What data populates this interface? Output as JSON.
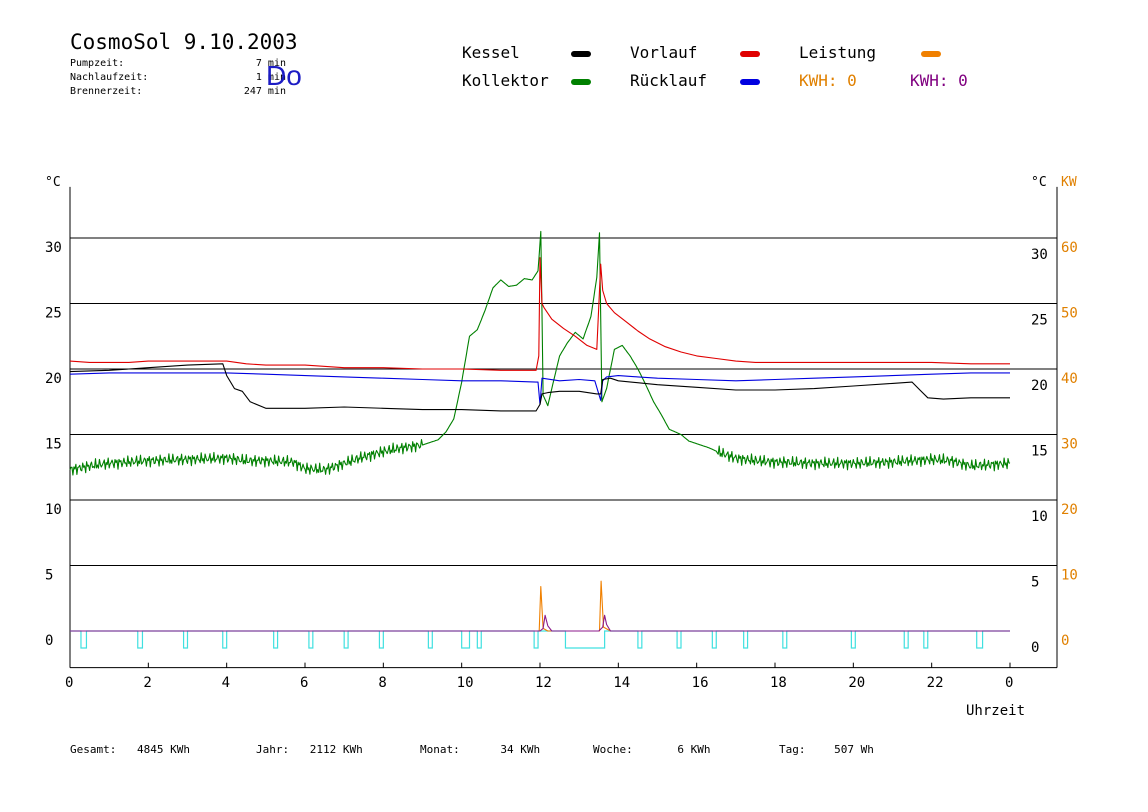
{
  "header": {
    "title": "CosmoSol 9.10.2003",
    "day": "Do",
    "info": [
      {
        "label": "Pumpzeit:",
        "value": "7 min"
      },
      {
        "label": "Nachlaufzeit:",
        "value": "1 min"
      },
      {
        "label": "Brennerzeit:",
        "value": "247 min"
      }
    ]
  },
  "legend": {
    "items": [
      {
        "label": "Kessel",
        "color": "#000000"
      },
      {
        "label": "Vorlauf",
        "color": "#e00000"
      },
      {
        "label": "Leistung",
        "color": "#f08000"
      },
      {
        "label": "Kollektor",
        "color": "#008000"
      },
      {
        "label": "Rücklauf",
        "color": "#0000e0"
      }
    ],
    "kwh1": "KWH: 0",
    "kwh1_color": "#e08000",
    "kwh2": "KWH: 0",
    "kwh2_color": "#800080"
  },
  "footer": {
    "items": [
      {
        "label": "Gesamt:",
        "value": "4845 KWh"
      },
      {
        "label": "Jahr:",
        "value": "2112 KWh"
      },
      {
        "label": "Monat:",
        "value": "34 KWh"
      },
      {
        "label": "Woche:",
        "value": "6 KWh"
      },
      {
        "label": "Tag:",
        "value": "507 Wh"
      }
    ]
  },
  "chart_data": {
    "type": "line",
    "xlabel": "Uhrzeit",
    "x_ticks": [
      "0",
      "2",
      "4",
      "6",
      "8",
      "10",
      "12",
      "14",
      "16",
      "18",
      "20",
      "22",
      "0"
    ],
    "xlim": [
      0,
      24
    ],
    "ylabel_left": "°C",
    "ylabel_right": "°C",
    "ylabel_right2": "KW",
    "ylim": [
      -2.8,
      33.9
    ],
    "y_ticks": [
      0,
      5,
      10,
      15,
      20,
      25,
      30
    ],
    "y2_ticks": [
      0,
      10,
      20,
      30,
      40,
      50,
      60
    ],
    "grid": true,
    "series": [
      {
        "name": "Kollektor",
        "color": "#008000",
        "x": [
          0,
          0.5,
          1,
          2,
          3,
          4,
          4.5,
          5,
          5.7,
          6,
          6.5,
          7,
          7.5,
          8,
          8.5,
          9,
          9.4,
          9.6,
          9.8,
          10,
          10.2,
          10.4,
          10.6,
          10.8,
          11,
          11.2,
          11.4,
          11.6,
          11.8,
          11.95,
          12.02,
          12.08,
          12.2,
          12.3,
          12.5,
          12.7,
          12.9,
          13.1,
          13.3,
          13.45,
          13.52,
          13.58,
          13.7,
          13.9,
          14.1,
          14.3,
          14.5,
          14.7,
          14.9,
          15.1,
          15.3,
          15.6,
          15.8,
          16,
          16.3,
          16.6,
          17,
          17.5,
          18,
          19,
          20,
          21,
          22,
          22.5,
          23,
          23.5,
          24
        ],
        "y": [
          12.3,
          12.6,
          12.8,
          13.0,
          13.1,
          13.2,
          13.0,
          13.0,
          12.9,
          12.4,
          12.3,
          12.8,
          13.3,
          13.7,
          14.0,
          14.2,
          14.6,
          15.2,
          16.2,
          19.0,
          22.5,
          23.0,
          24.5,
          26.2,
          26.8,
          26.3,
          26.4,
          26.9,
          26.8,
          27.5,
          30.5,
          18.0,
          17.2,
          18.5,
          21.0,
          22.0,
          22.8,
          22.3,
          24.0,
          27.0,
          30.4,
          17.5,
          18.5,
          21.5,
          21.8,
          21.0,
          20.0,
          18.8,
          17.5,
          16.5,
          15.4,
          15.0,
          14.5,
          14.3,
          14.0,
          13.6,
          13.2,
          13.0,
          12.9,
          12.8,
          12.8,
          12.9,
          13.1,
          13.0,
          12.6,
          12.7,
          12.8
        ]
      },
      {
        "name": "Vorlauf",
        "color": "#e00000",
        "x": [
          0,
          0.5,
          1,
          1.5,
          2,
          3,
          3.5,
          4,
          4.5,
          5,
          6,
          7,
          8,
          9,
          10,
          11,
          11.9,
          11.97,
          12.0,
          12.05,
          12.1,
          12.3,
          12.6,
          12.9,
          13.2,
          13.45,
          13.55,
          13.6,
          13.7,
          13.9,
          14.2,
          14.5,
          14.8,
          15.2,
          15.6,
          16,
          16.5,
          17,
          17.5,
          18,
          19,
          20,
          21,
          22,
          23,
          24
        ],
        "y": [
          20.6,
          20.5,
          20.5,
          20.5,
          20.6,
          20.6,
          20.6,
          20.6,
          20.4,
          20.3,
          20.3,
          20.1,
          20.1,
          20.0,
          20.0,
          19.9,
          19.9,
          21.0,
          28.5,
          25.0,
          24.7,
          23.8,
          23.1,
          22.5,
          21.8,
          21.5,
          28.0,
          26.0,
          25.0,
          24.3,
          23.6,
          22.9,
          22.3,
          21.7,
          21.3,
          21.0,
          20.8,
          20.6,
          20.5,
          20.5,
          20.5,
          20.5,
          20.5,
          20.5,
          20.4,
          20.4
        ]
      },
      {
        "name": "Rücklauf",
        "color": "#0000e0",
        "x": [
          0,
          1,
          2,
          3,
          4,
          5,
          6,
          7,
          8,
          9,
          10,
          11,
          11.9,
          11.95,
          12.0,
          12.05,
          12.5,
          13.0,
          13.4,
          13.55,
          13.6,
          13.7,
          14,
          14.5,
          15,
          16,
          17,
          18,
          19,
          20,
          21,
          22,
          23,
          24
        ],
        "y": [
          19.6,
          19.7,
          19.7,
          19.7,
          19.7,
          19.6,
          19.5,
          19.4,
          19.3,
          19.2,
          19.1,
          19.1,
          19.0,
          19.0,
          17.3,
          19.3,
          19.1,
          19.2,
          19.1,
          17.6,
          19.1,
          19.4,
          19.5,
          19.4,
          19.3,
          19.2,
          19.1,
          19.2,
          19.3,
          19.4,
          19.5,
          19.6,
          19.7,
          19.7
        ]
      },
      {
        "name": "Kessel",
        "color": "#000000",
        "x": [
          0,
          1,
          2,
          3,
          3.9,
          4.0,
          4.2,
          4.4,
          4.6,
          5,
          6,
          7,
          8,
          9,
          10,
          11,
          11.9,
          12.0,
          12.05,
          12.2,
          12.5,
          13.0,
          13.45,
          13.55,
          13.6,
          13.8,
          14,
          15,
          16,
          17,
          18,
          19,
          20,
          21,
          21.5,
          21.7,
          21.9,
          22.3,
          23,
          24
        ],
        "y": [
          19.8,
          19.9,
          20.1,
          20.3,
          20.4,
          19.5,
          18.5,
          18.3,
          17.5,
          17.0,
          17.0,
          17.1,
          17.0,
          16.9,
          16.9,
          16.8,
          16.8,
          17.3,
          18.1,
          18.2,
          18.3,
          18.3,
          18.1,
          18.1,
          19.2,
          19.3,
          19.1,
          18.8,
          18.6,
          18.4,
          18.4,
          18.5,
          18.7,
          18.9,
          19.0,
          18.4,
          17.8,
          17.7,
          17.8,
          17.8
        ]
      },
      {
        "name": "Leistung",
        "color": "#f08000",
        "x": [
          0,
          11.9,
          11.98,
          12.02,
          12.08,
          12.2,
          13.45,
          13.52,
          13.56,
          13.62,
          13.8,
          24
        ],
        "y": [
          0,
          0,
          0,
          3.4,
          0.2,
          0,
          0,
          0,
          3.8,
          0.3,
          0,
          0
        ]
      },
      {
        "name": "Pumpe",
        "color": "#8b1a8b",
        "x": [
          0,
          12.0,
          12.08,
          12.13,
          12.2,
          12.3,
          13.5,
          13.6,
          13.65,
          13.7,
          13.8,
          24
        ],
        "y": [
          0,
          0,
          0.2,
          1.2,
          0.4,
          0,
          0,
          0.3,
          1.2,
          0.5,
          0,
          0
        ]
      }
    ],
    "burner_pulses": {
      "color": "#40e0e0",
      "baseline": 0,
      "depth": -1.3,
      "pulses": [
        [
          0.28,
          0.42
        ],
        [
          1.73,
          1.85
        ],
        [
          2.9,
          3.0
        ],
        [
          3.9,
          4.0
        ],
        [
          5.2,
          5.3
        ],
        [
          6.1,
          6.2
        ],
        [
          7.0,
          7.1
        ],
        [
          7.9,
          8.0
        ],
        [
          9.15,
          9.25
        ],
        [
          10.0,
          10.2
        ],
        [
          10.4,
          10.5
        ],
        [
          11.85,
          11.95
        ],
        [
          12.65,
          13.65
        ],
        [
          14.5,
          14.6
        ],
        [
          15.5,
          15.6
        ],
        [
          16.4,
          16.5
        ],
        [
          17.2,
          17.3
        ],
        [
          18.2,
          18.3
        ],
        [
          19.95,
          20.05
        ],
        [
          21.3,
          21.4
        ],
        [
          21.8,
          21.9
        ],
        [
          23.15,
          23.3
        ]
      ]
    }
  }
}
